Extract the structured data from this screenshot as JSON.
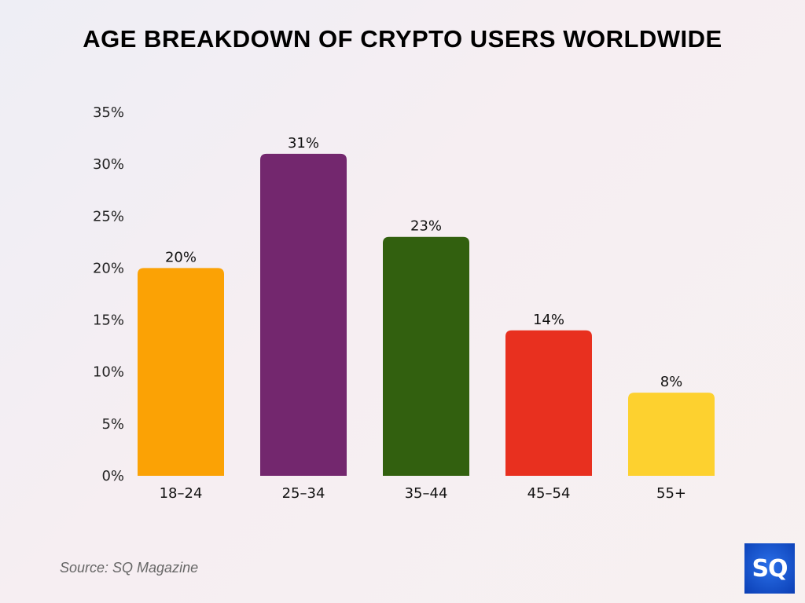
{
  "chart_data": {
    "type": "bar",
    "title": "AGE BREAKDOWN OF CRYPTO USERS WORLDWIDE",
    "categories": [
      "18–24",
      "25–34",
      "35–44",
      "45–54",
      "55+"
    ],
    "values": [
      20,
      31,
      23,
      14,
      8
    ],
    "data_labels": [
      "20%",
      "31%",
      "23%",
      "14%",
      "8%"
    ],
    "colors": [
      "#FBA205",
      "#73276E",
      "#32600F",
      "#E8301F",
      "#FDD12F"
    ],
    "yticks": [
      "0%",
      "5%",
      "10%",
      "15%",
      "20%",
      "25%",
      "30%",
      "35%"
    ],
    "ytick_values": [
      0,
      5,
      10,
      15,
      20,
      25,
      30,
      35
    ],
    "ylim": [
      0,
      35
    ],
    "xlabel": "",
    "ylabel": "",
    "grid": false,
    "legend": "none"
  },
  "source": "Source: SQ Magazine",
  "logo": {
    "text": "SQ",
    "color": "#1a56d6"
  }
}
